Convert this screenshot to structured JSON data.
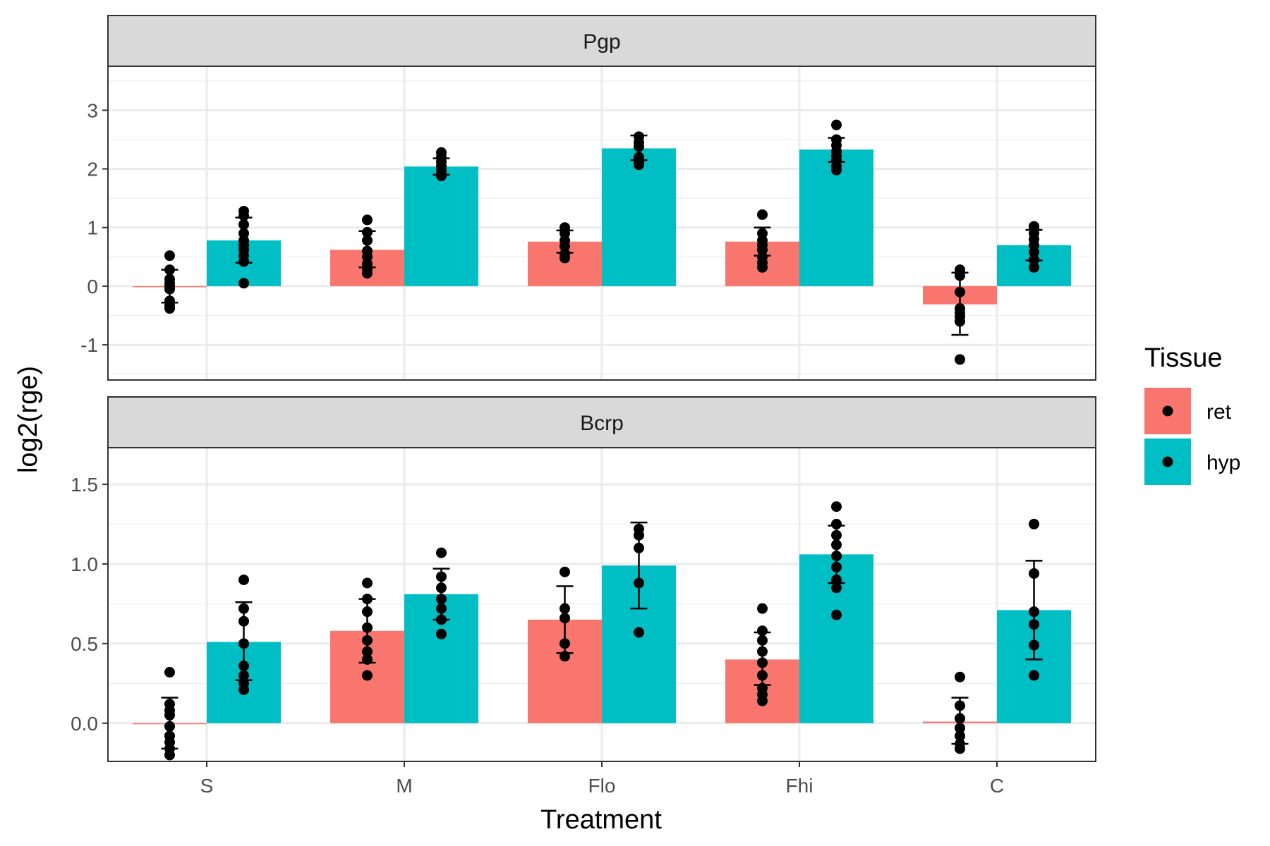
{
  "chart_data": {
    "type": "bar",
    "xlabel": "Treatment",
    "ylabel": "log2(rge)",
    "categories": [
      "S",
      "M",
      "Flo",
      "Fhi",
      "C"
    ],
    "legend": {
      "title": "Tissue",
      "position": "right",
      "entries": [
        {
          "name": "ret",
          "color": "#F8766D"
        },
        {
          "name": "hyp",
          "color": "#00BFC4"
        }
      ]
    },
    "panels": [
      {
        "strip": "Pgp",
        "ylim": [
          -1.6,
          3.75
        ],
        "yticks": [
          -1,
          0,
          1,
          2,
          3
        ],
        "ytick_labels": [
          "-1",
          "0",
          "1",
          "2",
          "3"
        ],
        "series": [
          {
            "name": "ret",
            "values": [
              0.0,
              0.62,
              0.76,
              0.76,
              -0.31
            ],
            "error_low": [
              -0.28,
              0.32,
              0.57,
              0.52,
              -0.83
            ],
            "error_high": [
              0.28,
              0.94,
              0.95,
              1.0,
              0.23
            ],
            "points": [
              [
                0.52,
                0.28,
                0.12,
                0.05,
                0.0,
                -0.05,
                -0.25,
                -0.33,
                -0.38
              ],
              [
                1.13,
                0.92,
                0.78,
                0.6,
                0.5,
                0.38,
                0.3,
                0.22
              ],
              [
                1.0,
                0.9,
                0.78,
                0.68,
                0.55,
                0.48
              ],
              [
                1.22,
                0.9,
                0.78,
                0.7,
                0.62,
                0.5,
                0.4,
                0.32
              ],
              [
                0.28,
                0.18,
                -0.1,
                -0.38,
                -0.45,
                -0.52,
                -0.6,
                -1.25
              ]
            ]
          },
          {
            "name": "hyp",
            "values": [
              0.78,
              2.04,
              2.35,
              2.33,
              0.7
            ],
            "error_low": [
              0.4,
              1.9,
              2.15,
              2.12,
              0.44
            ],
            "error_high": [
              1.17,
              2.18,
              2.57,
              2.53,
              0.96
            ],
            "points": [
              [
                1.28,
                1.2,
                1.05,
                0.9,
                0.78,
                0.7,
                0.62,
                0.52,
                0.42,
                0.05
              ],
              [
                2.28,
                2.2,
                2.12,
                2.05,
                1.98,
                1.92,
                1.88
              ],
              [
                2.55,
                2.45,
                2.38,
                2.2,
                2.12,
                2.07
              ],
              [
                2.75,
                2.5,
                2.4,
                2.3,
                2.22,
                2.15,
                2.05,
                1.98
              ],
              [
                1.02,
                0.98,
                0.9,
                0.8,
                0.7,
                0.58,
                0.45,
                0.32
              ]
            ]
          }
        ]
      },
      {
        "strip": "Bcrp",
        "ylim": [
          -0.24,
          1.73
        ],
        "yticks": [
          0,
          0.5,
          1,
          1.5
        ],
        "ytick_labels": [
          "0.0",
          "0.5",
          "1.0",
          "1.5"
        ],
        "series": [
          {
            "name": "ret",
            "values": [
              0.0,
              0.58,
              0.65,
              0.4,
              0.01
            ],
            "error_low": [
              -0.16,
              0.38,
              0.44,
              0.24,
              -0.13
            ],
            "error_high": [
              0.16,
              0.78,
              0.86,
              0.57,
              0.16
            ],
            "points": [
              [
                0.32,
                0.12,
                0.08,
                0.05,
                -0.02,
                -0.08,
                -0.12,
                -0.16,
                -0.2
              ],
              [
                0.88,
                0.78,
                0.7,
                0.6,
                0.52,
                0.45,
                0.4,
                0.3
              ],
              [
                0.95,
                0.72,
                0.66,
                0.5,
                0.42
              ],
              [
                0.72,
                0.58,
                0.52,
                0.45,
                0.38,
                0.3,
                0.22,
                0.18,
                0.14
              ],
              [
                0.29,
                0.11,
                0.03,
                -0.03,
                -0.08,
                -0.13,
                -0.16
              ]
            ]
          },
          {
            "name": "hyp",
            "values": [
              0.51,
              0.81,
              0.99,
              1.06,
              0.71
            ],
            "error_low": [
              0.27,
              0.65,
              0.72,
              0.88,
              0.4
            ],
            "error_high": [
              0.76,
              0.97,
              1.26,
              1.24,
              1.02
            ],
            "points": [
              [
                0.9,
                0.72,
                0.64,
                0.5,
                0.36,
                0.3,
                0.25,
                0.21
              ],
              [
                1.07,
                0.92,
                0.85,
                0.78,
                0.72,
                0.65,
                0.56
              ],
              [
                1.22,
                1.18,
                1.1,
                0.88,
                0.57
              ],
              [
                1.36,
                1.25,
                1.18,
                1.12,
                1.05,
                0.98,
                0.9,
                0.85,
                0.68
              ],
              [
                1.25,
                0.94,
                0.7,
                0.62,
                0.49,
                0.3
              ]
            ]
          }
        ]
      }
    ]
  }
}
